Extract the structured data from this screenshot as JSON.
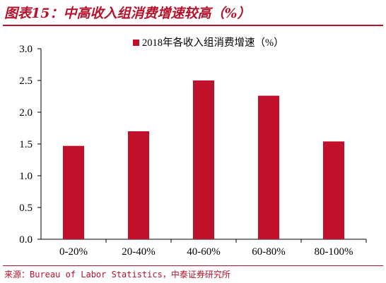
{
  "figure": {
    "title": "图表15：中高收入组消费增速较高（%）",
    "source": "来源：Bureau of Labor Statistics，中泰证券研究所"
  },
  "colors": {
    "accent": "#b5122c",
    "bar": "#c0102c"
  },
  "chart_data": {
    "type": "bar",
    "categories": [
      "0-20%",
      "20-40%",
      "40-60%",
      "60-80%",
      "80-100%"
    ],
    "series": [
      {
        "name": "2018年各收入组消费增速（%）",
        "values": [
          1.47,
          1.7,
          2.5,
          2.26,
          1.54
        ]
      }
    ],
    "ylim": [
      0,
      3.0
    ],
    "yticks": [
      "0.0",
      "0.5",
      "1.0",
      "1.5",
      "2.0",
      "2.5",
      "3.0"
    ],
    "grid": false,
    "legend_position": "top-center"
  }
}
